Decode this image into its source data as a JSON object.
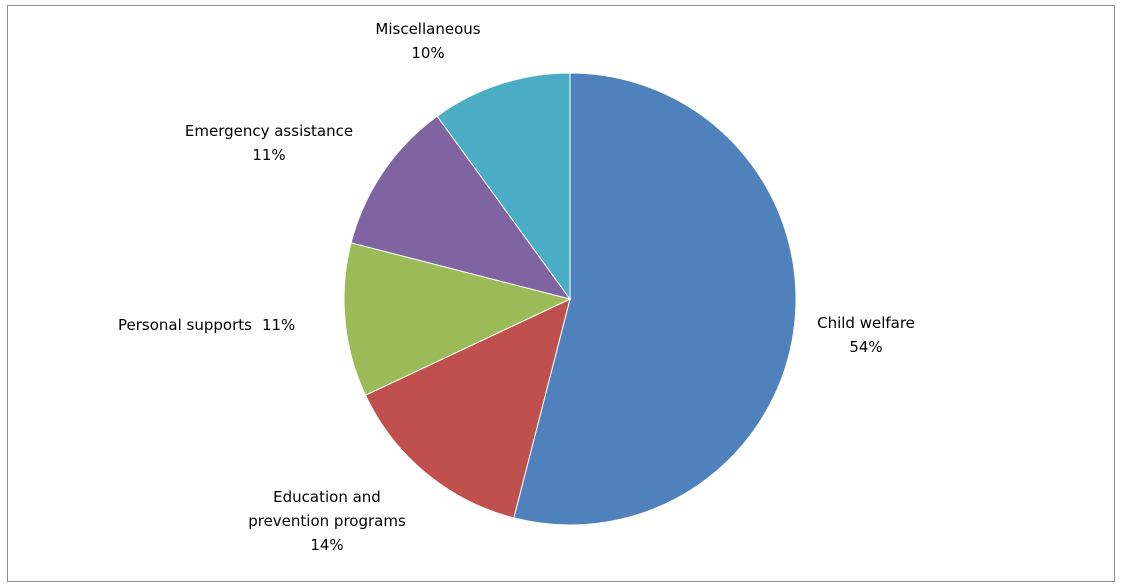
{
  "chart_data": {
    "type": "pie",
    "title": "",
    "slices": [
      {
        "label": "Child welfare",
        "value": 54,
        "pct_text": "54%",
        "color": "#4f81bd"
      },
      {
        "label": "Education and prevention programs",
        "value": 14,
        "pct_text": "14%",
        "color": "#c0504d"
      },
      {
        "label": "Personal supports",
        "value": 11,
        "pct_text": "11%",
        "color": "#9bbb59"
      },
      {
        "label": "Emergency assistance",
        "value": 11,
        "pct_text": "11%",
        "color": "#8064a2"
      },
      {
        "label": "Miscellaneous",
        "value": 10,
        "pct_text": "10%",
        "color": "#4bacc6"
      }
    ],
    "start_angle": "12 o'clock",
    "direction": "clockwise",
    "legend": "none",
    "data_labels": "outside, category name and percentage"
  }
}
